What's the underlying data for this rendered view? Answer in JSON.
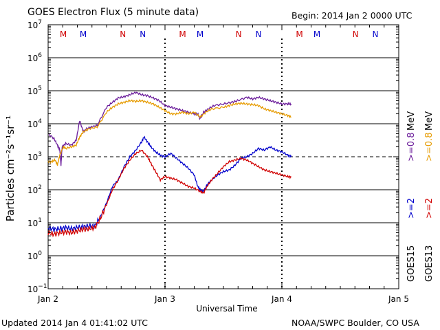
{
  "header": {
    "title": "GOES Electron Flux (5 minute data)",
    "begin": "Begin: 2014 Jan 2 0000 UTC"
  },
  "footer": {
    "updated": "Updated 2014 Jan  4 01:41:02 UTC",
    "source": "NOAA/SWPC Boulder, CO USA"
  },
  "chart_data": {
    "type": "line",
    "title": "GOES Electron Flux (5 minute data)",
    "xlabel": "Universal Time",
    "ylabel": "Particles cm⁻²s⁻¹sr⁻¹",
    "x_unit": "days since 2014 Jan 2 0000 UTC",
    "xlim": [
      0,
      3
    ],
    "ylim_log10": [
      -1,
      7
    ],
    "y_scale": "log",
    "x_ticks": [
      {
        "x": 0,
        "label": "Jan 2"
      },
      {
        "x": 1,
        "label": "Jan 3"
      },
      {
        "x": 2,
        "label": "Jan 4"
      },
      {
        "x": 3,
        "label": "Jan 5"
      }
    ],
    "y_ticks": [
      {
        "exp": -1,
        "base": "10",
        "sup": "−1"
      },
      {
        "exp": 0,
        "base": "10",
        "sup": "0"
      },
      {
        "exp": 1,
        "base": "10",
        "sup": "1"
      },
      {
        "exp": 2,
        "base": "10",
        "sup": "2"
      },
      {
        "exp": 3,
        "base": "10",
        "sup": "3"
      },
      {
        "exp": 4,
        "base": "10",
        "sup": "4"
      },
      {
        "exp": 5,
        "base": "10",
        "sup": "5"
      },
      {
        "exp": 6,
        "base": "10",
        "sup": "6"
      },
      {
        "exp": 7,
        "base": "10",
        "sup": "7"
      }
    ],
    "grid_exponents": [
      0,
      1,
      2,
      4,
      5,
      6
    ],
    "threshold_exponent": 3,
    "day_markers": [
      1,
      2
    ],
    "mn_markers": [
      {
        "x": 0.13,
        "label": "M",
        "color": "#d00000"
      },
      {
        "x": 0.3,
        "label": "M",
        "color": "#0000cc"
      },
      {
        "x": 0.64,
        "label": "N",
        "color": "#d00000"
      },
      {
        "x": 0.81,
        "label": "N",
        "color": "#0000cc"
      },
      {
        "x": 1.15,
        "label": "M",
        "color": "#d00000"
      },
      {
        "x": 1.3,
        "label": "M",
        "color": "#0000cc"
      },
      {
        "x": 1.63,
        "label": "N",
        "color": "#d00000"
      },
      {
        "x": 1.8,
        "label": "N",
        "color": "#0000cc"
      },
      {
        "x": 2.15,
        "label": "M",
        "color": "#d00000"
      },
      {
        "x": 2.3,
        "label": "M",
        "color": "#0000cc"
      },
      {
        "x": 2.63,
        "label": "N",
        "color": "#d00000"
      },
      {
        "x": 2.8,
        "label": "N",
        "color": "#0000cc"
      }
    ],
    "legend": [
      {
        "sat": "GOES15",
        "energy": ">=2",
        "energy2": ">=0.8 MeV",
        "color_low": "#0000cc",
        "color_high": "#6a1b9a"
      },
      {
        "sat": "GOES13",
        "energy": ">=2",
        "energy2": ">=0.8 MeV",
        "color_low": "#d00000",
        "color_high": "#e69b00"
      }
    ],
    "series": [
      {
        "name": "GOES15 >=0.8 MeV",
        "color": "#6a1b9a",
        "x": [
          0,
          0.05,
          0.08,
          0.1,
          0.11,
          0.12,
          0.15,
          0.2,
          0.24,
          0.27,
          0.3,
          0.33,
          0.37,
          0.42,
          0.5,
          0.55,
          0.6,
          0.65,
          0.7,
          0.75,
          0.8,
          0.85,
          0.9,
          0.95,
          1.0,
          1.05,
          1.1,
          1.15,
          1.2,
          1.25,
          1.28,
          1.3,
          1.33,
          1.37,
          1.42,
          1.5,
          1.57,
          1.62,
          1.7,
          1.75,
          1.8,
          1.85,
          1.9,
          1.95,
          2.0,
          2.05,
          2.08
        ],
        "log10": [
          3.7,
          3.55,
          3.35,
          3.2,
          2.75,
          3.3,
          3.4,
          3.35,
          3.5,
          4.1,
          3.75,
          3.85,
          3.9,
          3.95,
          4.5,
          4.65,
          4.78,
          4.82,
          4.88,
          4.95,
          4.88,
          4.85,
          4.78,
          4.7,
          4.55,
          4.5,
          4.45,
          4.4,
          4.35,
          4.3,
          4.3,
          4.15,
          4.35,
          4.45,
          4.55,
          4.6,
          4.65,
          4.7,
          4.8,
          4.75,
          4.8,
          4.75,
          4.7,
          4.65,
          4.6,
          4.6,
          4.6
        ]
      },
      {
        "name": "GOES13 >=0.8 MeV",
        "color": "#e69b00",
        "x": [
          0,
          0.03,
          0.06,
          0.08,
          0.1,
          0.13,
          0.15,
          0.2,
          0.24,
          0.27,
          0.3,
          0.35,
          0.42,
          0.5,
          0.55,
          0.6,
          0.65,
          0.7,
          0.75,
          0.8,
          0.85,
          0.9,
          0.95,
          1.0,
          1.05,
          1.1,
          1.15,
          1.2,
          1.25,
          1.3,
          1.35,
          1.4,
          1.5,
          1.55,
          1.6,
          1.65,
          1.7,
          1.75,
          1.8,
          1.85,
          1.9,
          1.95,
          2.0,
          2.05,
          2.08
        ],
        "log10": [
          2.85,
          2.85,
          2.9,
          2.75,
          3.05,
          3.3,
          3.25,
          3.3,
          3.35,
          3.6,
          3.75,
          3.85,
          3.9,
          4.35,
          4.5,
          4.6,
          4.65,
          4.7,
          4.68,
          4.7,
          4.65,
          4.6,
          4.5,
          4.4,
          4.3,
          4.3,
          4.35,
          4.3,
          4.35,
          4.2,
          4.35,
          4.45,
          4.5,
          4.55,
          4.6,
          4.62,
          4.6,
          4.58,
          4.55,
          4.45,
          4.4,
          4.35,
          4.3,
          4.25,
          4.2
        ]
      },
      {
        "name": "GOES15 >=2 MeV",
        "color": "#0000cc",
        "x": [
          0,
          0.05,
          0.1,
          0.15,
          0.2,
          0.25,
          0.3,
          0.35,
          0.4,
          0.45,
          0.5,
          0.55,
          0.6,
          0.65,
          0.7,
          0.75,
          0.8,
          0.82,
          0.85,
          0.88,
          0.92,
          0.96,
          1.0,
          1.05,
          1.1,
          1.15,
          1.2,
          1.25,
          1.28,
          1.3,
          1.33,
          1.36,
          1.4,
          1.45,
          1.5,
          1.55,
          1.6,
          1.65,
          1.7,
          1.75,
          1.8,
          1.85,
          1.9,
          1.95,
          2.0,
          2.05,
          2.08
        ],
        "log10": [
          0.85,
          0.8,
          0.82,
          0.85,
          0.82,
          0.85,
          0.88,
          0.9,
          0.9,
          1.2,
          1.6,
          2.1,
          2.3,
          2.7,
          3.0,
          3.2,
          3.45,
          3.6,
          3.45,
          3.3,
          3.15,
          3.05,
          3.0,
          3.1,
          2.95,
          2.8,
          2.65,
          2.45,
          2.1,
          2.0,
          1.95,
          2.15,
          2.3,
          2.45,
          2.55,
          2.6,
          2.75,
          2.95,
          3.0,
          3.1,
          3.25,
          3.2,
          3.3,
          3.2,
          3.15,
          3.05,
          3.0
        ]
      },
      {
        "name": "GOES13 >=2 MeV",
        "color": "#d00000",
        "x": [
          0,
          0.05,
          0.1,
          0.15,
          0.2,
          0.25,
          0.3,
          0.35,
          0.4,
          0.45,
          0.5,
          0.55,
          0.6,
          0.65,
          0.7,
          0.75,
          0.8,
          0.85,
          0.88,
          0.92,
          0.96,
          1.0,
          1.05,
          1.1,
          1.15,
          1.2,
          1.25,
          1.3,
          1.33,
          1.36,
          1.4,
          1.45,
          1.5,
          1.55,
          1.6,
          1.65,
          1.7,
          1.75,
          1.8,
          1.85,
          1.9,
          1.95,
          2.0,
          2.05,
          2.08
        ],
        "log10": [
          0.7,
          0.65,
          0.7,
          0.72,
          0.7,
          0.75,
          0.8,
          0.82,
          0.85,
          1.15,
          1.55,
          2.0,
          2.3,
          2.65,
          2.9,
          3.1,
          3.2,
          3.0,
          2.8,
          2.55,
          2.3,
          2.4,
          2.35,
          2.3,
          2.2,
          2.1,
          2.05,
          1.95,
          1.9,
          2.1,
          2.3,
          2.5,
          2.7,
          2.85,
          2.9,
          2.95,
          2.9,
          2.8,
          2.7,
          2.6,
          2.55,
          2.5,
          2.45,
          2.4,
          2.38
        ]
      }
    ]
  }
}
